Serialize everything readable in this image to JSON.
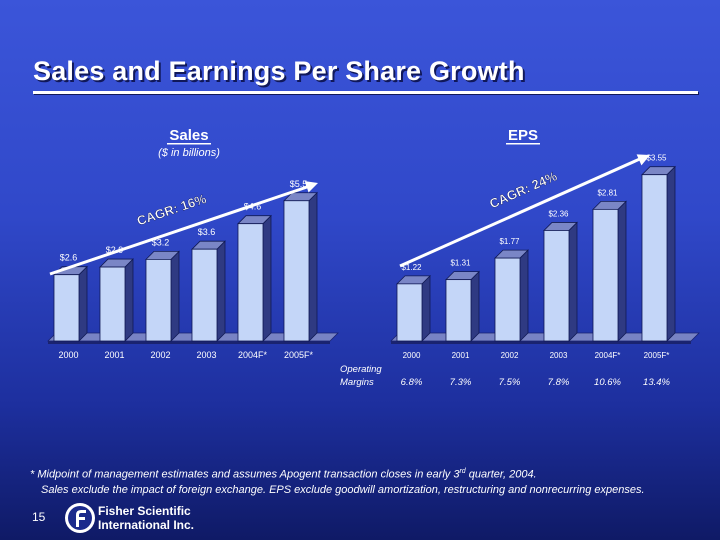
{
  "title": "Sales and Earnings Per Share Growth",
  "chart_data": [
    {
      "type": "bar",
      "title": "Sales",
      "subtitle": "($ in billions)",
      "categories": [
        "2000",
        "2001",
        "2002",
        "2003",
        "2004F*",
        "2005F*"
      ],
      "values": [
        2.6,
        2.9,
        3.2,
        3.6,
        4.6,
        5.5
      ],
      "value_labels": [
        "$2.6",
        "$2.9",
        "$3.2",
        "$3.6",
        "$4.6",
        "$5.5"
      ],
      "annotation": "CAGR: 16%",
      "ylim": [
        0,
        6
      ]
    },
    {
      "type": "bar",
      "title": "EPS",
      "categories": [
        "2000",
        "2001",
        "2002",
        "2003",
        "2004F*",
        "2005F*"
      ],
      "values": [
        1.22,
        1.31,
        1.77,
        2.36,
        2.81,
        3.55
      ],
      "value_labels": [
        "$1.22",
        "$1.31",
        "$1.77",
        "$2.36",
        "$2.81",
        "$3.55"
      ],
      "annotation": "CAGR: 24%",
      "ylim": [
        0,
        3.8
      ],
      "row_label_line1": "Operating",
      "row_label_line2": "Margins",
      "row_values": [
        "6.8%",
        "7.3%",
        "7.5%",
        "7.8%",
        "10.6%",
        "13.4%"
      ]
    }
  ],
  "footnote": {
    "line1_before": "*  Midpoint of management estimates and assumes Apogent transaction closes in early 3",
    "line1_sup": "rd",
    "line1_after": " quarter, 2004.",
    "line2": "Sales exclude the impact of foreign exchange. EPS exclude goodwill amortization, restructuring and nonrecurring expenses."
  },
  "page_number": "15",
  "logo": {
    "line1": "Fisher Scientific",
    "line2": "International Inc."
  },
  "colors": {
    "bar_front": "#c4d6f8",
    "bar_side": "#2f3a82",
    "bar_top": "#7a86c6",
    "floor": "#7883c4",
    "arrow": "#ffffff"
  }
}
